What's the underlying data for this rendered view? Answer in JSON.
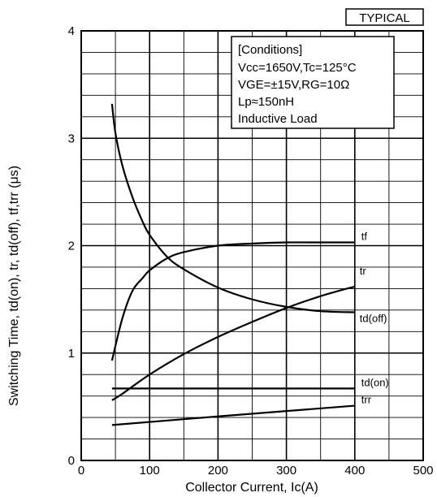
{
  "chart_data": {
    "type": "line",
    "badge": "TYPICAL",
    "xlabel": "Collector Current, Ic(A)",
    "ylabel": "Switching Time, td(on), tr, td(off), tf,trr (μs)",
    "xlim": [
      0,
      500
    ],
    "ylim": [
      0,
      4
    ],
    "x_ticks": [
      0,
      100,
      200,
      300,
      400,
      500
    ],
    "y_ticks": [
      0,
      1,
      2,
      3,
      4
    ],
    "grid": true,
    "conditions": [
      "[Conditions]",
      "Vcc=1650V,Tc=125°C",
      "VGE=±15V,RG=10Ω",
      "Lp≈150nH",
      "Inductive Load"
    ],
    "series": [
      {
        "name": "tf",
        "x": [
          45,
          60,
          75,
          90,
          100,
          125,
          150,
          200,
          250,
          300,
          350,
          400
        ],
        "y": [
          0.93,
          1.32,
          1.58,
          1.7,
          1.77,
          1.88,
          1.94,
          2.0,
          2.02,
          2.03,
          2.03,
          2.03
        ]
      },
      {
        "name": "tr",
        "x": [
          45,
          60,
          100,
          150,
          200,
          250,
          300,
          350,
          400
        ],
        "y": [
          0.56,
          0.62,
          0.8,
          0.99,
          1.15,
          1.29,
          1.42,
          1.53,
          1.62
        ]
      },
      {
        "name": "td(off)",
        "x": [
          45,
          50,
          60,
          75,
          90,
          100,
          125,
          150,
          200,
          250,
          300,
          350,
          400
        ],
        "y": [
          3.32,
          3.05,
          2.75,
          2.45,
          2.22,
          2.1,
          1.9,
          1.78,
          1.61,
          1.5,
          1.43,
          1.39,
          1.38
        ]
      },
      {
        "name": "td(on)",
        "x": [
          45,
          400
        ],
        "y": [
          0.67,
          0.67
        ]
      },
      {
        "name": "trr",
        "x": [
          45,
          200,
          400
        ],
        "y": [
          0.33,
          0.41,
          0.51
        ]
      }
    ]
  }
}
